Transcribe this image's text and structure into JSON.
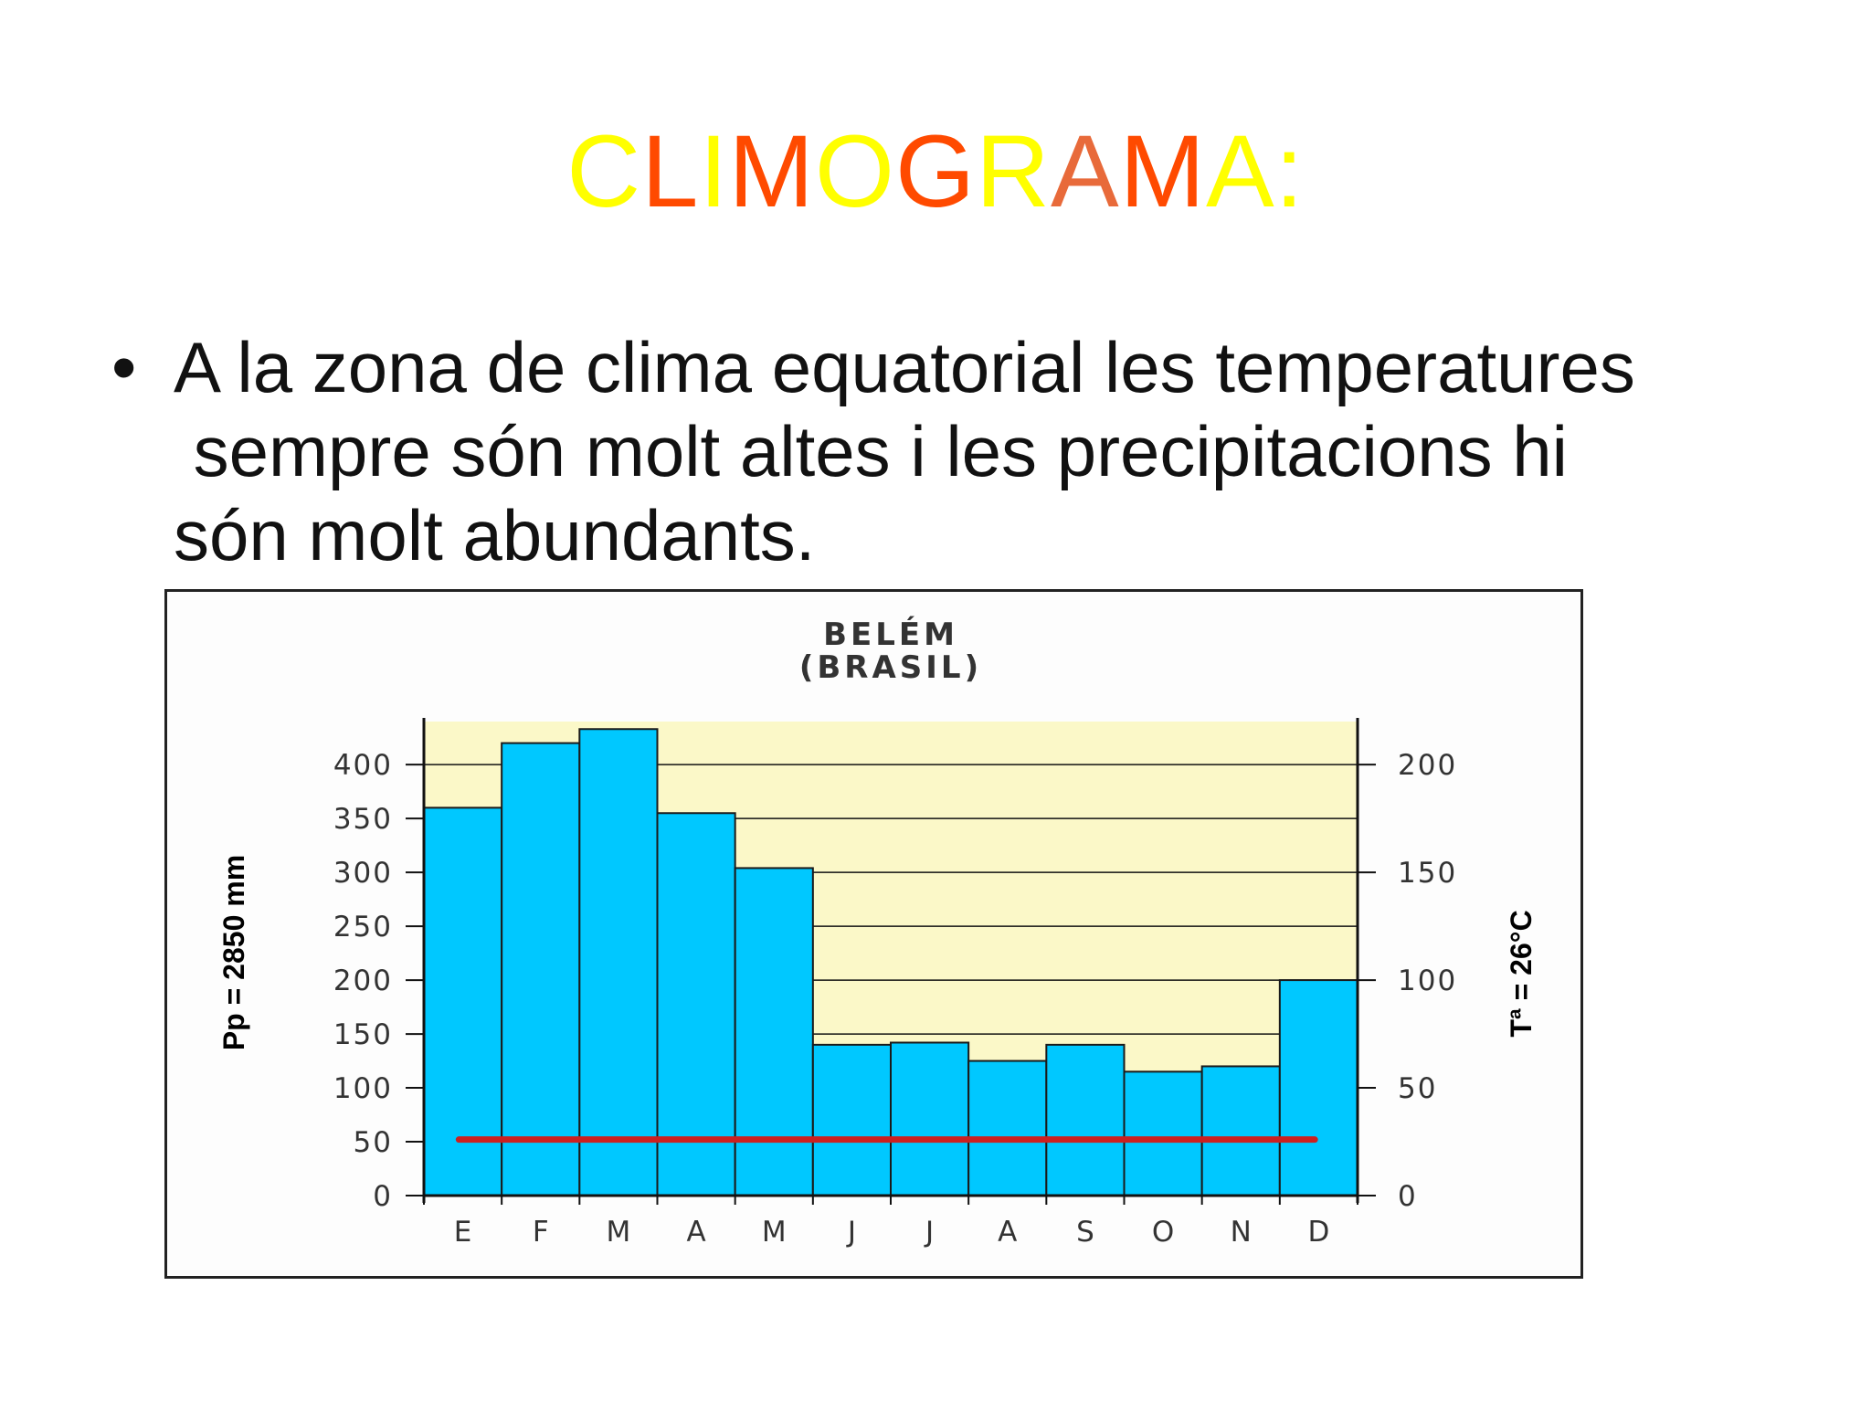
{
  "slide": {
    "title_letters": [
      {
        "ch": "C",
        "color": "#ffff00"
      },
      {
        "ch": "L",
        "color": "#ff4a00"
      },
      {
        "ch": "I",
        "color": "#ffff00"
      },
      {
        "ch": "M",
        "color": "#ff4a00"
      },
      {
        "ch": "O",
        "color": "#ffff00"
      },
      {
        "ch": "G",
        "color": "#ff4a00"
      },
      {
        "ch": "R",
        "color": "#ffff00"
      },
      {
        "ch": "A",
        "color": "#e86a3a"
      },
      {
        "ch": "M",
        "color": "#ff4a00"
      },
      {
        "ch": "A",
        "color": "#ffff00"
      },
      {
        "ch": ":",
        "color": "#ffff00"
      }
    ],
    "bullet_symbol": "•",
    "bullet_lines": [
      "A la zona de clima equatorial les temperatures",
      " sempre són molt altes i les precipitacions hi",
      "són molt abundants."
    ]
  },
  "chart_data": {
    "type": "bar",
    "title": "BELÉM",
    "subtitle": "(BRASIL)",
    "categories": [
      "E",
      "F",
      "M",
      "A",
      "M",
      "J",
      "J",
      "A",
      "S",
      "O",
      "N",
      "D"
    ],
    "series": [
      {
        "kind": "bar",
        "axis": "left",
        "values": [
          360,
          420,
          433,
          355,
          304,
          140,
          142,
          125,
          140,
          115,
          120,
          200
        ]
      },
      {
        "kind": "line",
        "axis": "right",
        "values": [
          26,
          26,
          26,
          26,
          26,
          26,
          26,
          26,
          26,
          26,
          26,
          26
        ]
      }
    ],
    "ylabel_left": "Pp = 2850 mm",
    "ylabel_right": "Tª = 26°C",
    "ylim_left": [
      0,
      440
    ],
    "ylim_right": [
      0,
      220
    ],
    "yticks_left": [
      0,
      50,
      100,
      150,
      200,
      250,
      300,
      350,
      400
    ],
    "yticks_right": [
      0,
      50,
      100,
      150,
      200
    ],
    "grid": true,
    "colors": {
      "bars": "#00c8ff",
      "bar_edge": "#1a1a1a",
      "plot_bg": "#fbf8c8",
      "line": "#cc2020",
      "axis": "#111111",
      "text": "#333333"
    }
  }
}
